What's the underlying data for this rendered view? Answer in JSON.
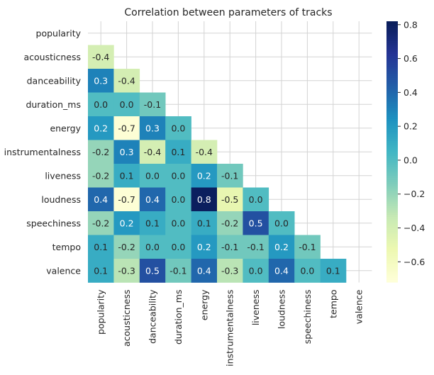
{
  "chart_data": {
    "type": "heatmap",
    "title": "Correlation between parameters of tracks",
    "xlabel": "",
    "ylabel": "",
    "variables": [
      "popularity",
      "acousticness",
      "danceability",
      "duration_ms",
      "energy",
      "instrumentalness",
      "liveness",
      "loudness",
      "speechiness",
      "tempo",
      "valence"
    ],
    "mask": "upper-triangle-including-diagonal",
    "matrix": [
      [
        null,
        null,
        null,
        null,
        null,
        null,
        null,
        null,
        null,
        null,
        null
      ],
      [
        -0.4,
        null,
        null,
        null,
        null,
        null,
        null,
        null,
        null,
        null,
        null
      ],
      [
        0.3,
        -0.4,
        null,
        null,
        null,
        null,
        null,
        null,
        null,
        null,
        null
      ],
      [
        0.0,
        0.0,
        -0.1,
        null,
        null,
        null,
        null,
        null,
        null,
        null,
        null
      ],
      [
        0.2,
        -0.7,
        0.3,
        -0.0,
        null,
        null,
        null,
        null,
        null,
        null,
        null
      ],
      [
        -0.2,
        0.3,
        -0.4,
        0.1,
        -0.4,
        null,
        null,
        null,
        null,
        null,
        null
      ],
      [
        -0.2,
        0.1,
        -0.0,
        0.0,
        0.2,
        -0.1,
        null,
        null,
        null,
        null,
        null
      ],
      [
        0.4,
        -0.7,
        0.4,
        -0.0,
        0.8,
        -0.5,
        0.0,
        null,
        null,
        null,
        null
      ],
      [
        -0.2,
        0.2,
        0.1,
        -0.0,
        0.1,
        -0.2,
        0.5,
        -0.0,
        null,
        null,
        null
      ],
      [
        0.1,
        -0.2,
        0.0,
        -0.0,
        0.2,
        -0.1,
        -0.1,
        0.2,
        -0.1,
        null,
        null
      ],
      [
        0.1,
        -0.3,
        0.5,
        -0.1,
        0.4,
        -0.3,
        0.0,
        0.4,
        0.0,
        0.1,
        null
      ]
    ],
    "annotation_format": "0.0",
    "colormap": "YlGnBu",
    "colorbar": {
      "range": [
        -0.72,
        0.82
      ],
      "ticks": [
        0.8,
        0.6,
        0.4,
        0.2,
        0.0,
        -0.2,
        -0.4,
        -0.6
      ],
      "tick_labels": [
        "0.8",
        "0.6",
        "0.4",
        "0.2",
        "0.0",
        "−0.2",
        "−0.4",
        "−0.6"
      ]
    },
    "grid": true,
    "background": "#ffffff",
    "grid_color": "#d3d3d3",
    "text_dark": "#262626",
    "text_light": "#ffffff"
  }
}
